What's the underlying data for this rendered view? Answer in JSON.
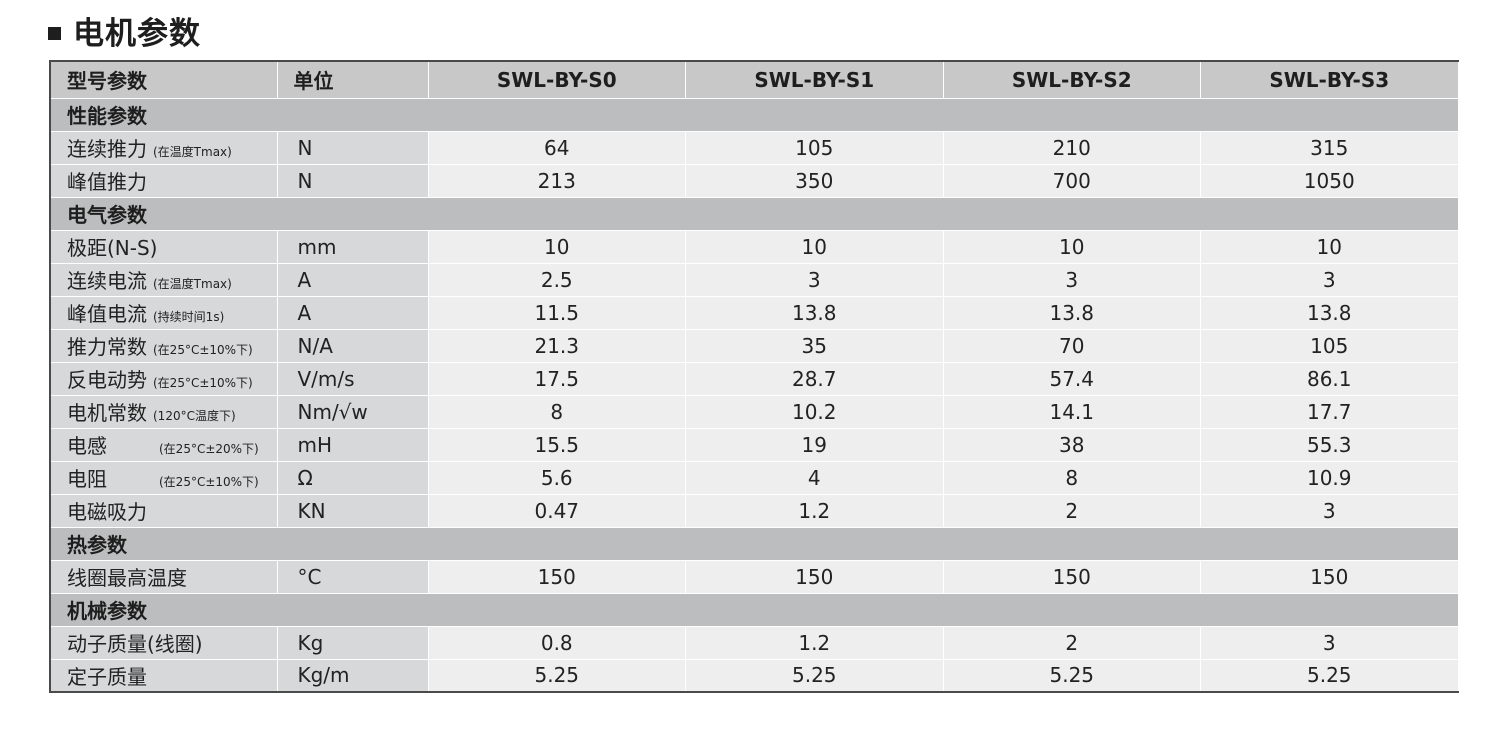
{
  "title": "电机参数",
  "header": {
    "param": "型号参数",
    "unit": "单位",
    "models": [
      "SWL-BY-S0",
      "SWL-BY-S1",
      "SWL-BY-S2",
      "SWL-BY-S3"
    ]
  },
  "sections": [
    {
      "title": "性能参数",
      "rows": [
        {
          "name": "连续推力",
          "note": "(在温度Tmax)",
          "unit": "N",
          "values": [
            "64",
            "105",
            "210",
            "315"
          ]
        },
        {
          "name": "峰值推力",
          "note": "",
          "unit": "N",
          "values": [
            "213",
            "350",
            "700",
            "1050"
          ]
        }
      ]
    },
    {
      "title": "电气参数",
      "rows": [
        {
          "name": "极距(N-S)",
          "note": "",
          "unit": "mm",
          "values": [
            "10",
            "10",
            "10",
            "10"
          ]
        },
        {
          "name": "连续电流",
          "note": "(在温度Tmax)",
          "unit": "A",
          "values": [
            "2.5",
            "3",
            "3",
            "3"
          ]
        },
        {
          "name": "峰值电流",
          "note": "(持续时间1s)",
          "unit": "A",
          "values": [
            "11.5",
            "13.8",
            "13.8",
            "13.8"
          ]
        },
        {
          "name": "推力常数",
          "note": "(在25°C±10%下)",
          "unit": "N/A",
          "values": [
            "21.3",
            "35",
            "70",
            "105"
          ]
        },
        {
          "name": "反电动势",
          "note": "(在25°C±10%下)",
          "unit": "V/m/s",
          "values": [
            "17.5",
            "28.7",
            "57.4",
            "86.1"
          ]
        },
        {
          "name": "电机常数",
          "note": "(120°C温度下)",
          "unit": "Nm/√w",
          "values": [
            "8",
            "10.2",
            "14.1",
            "17.7"
          ]
        },
        {
          "name": "电感",
          "note": "(在25°C±20%下)",
          "unit": "mH",
          "values": [
            "15.5",
            "19",
            "38",
            "55.3"
          ]
        },
        {
          "name": "电阻",
          "note": "(在25°C±10%下)",
          "unit": "Ω",
          "values": [
            "5.6",
            "4",
            "8",
            "10.9"
          ]
        },
        {
          "name": "电磁吸力",
          "note": "",
          "unit": "KN",
          "values": [
            "0.47",
            "1.2",
            "2",
            "3"
          ]
        }
      ]
    },
    {
      "title": "热参数",
      "rows": [
        {
          "name": "线圈最高温度",
          "note": "",
          "unit": "°C",
          "values": [
            "150",
            "150",
            "150",
            "150"
          ]
        }
      ]
    },
    {
      "title": "机械参数",
      "rows": [
        {
          "name": "动子质量(线圈)",
          "note": "",
          "unit": "Kg",
          "values": [
            "0.8",
            "1.2",
            "2",
            "3"
          ]
        },
        {
          "name": "定子质量",
          "note": "",
          "unit": "Kg/m",
          "values": [
            "5.25",
            "5.25",
            "5.25",
            "5.25"
          ]
        }
      ]
    }
  ]
}
